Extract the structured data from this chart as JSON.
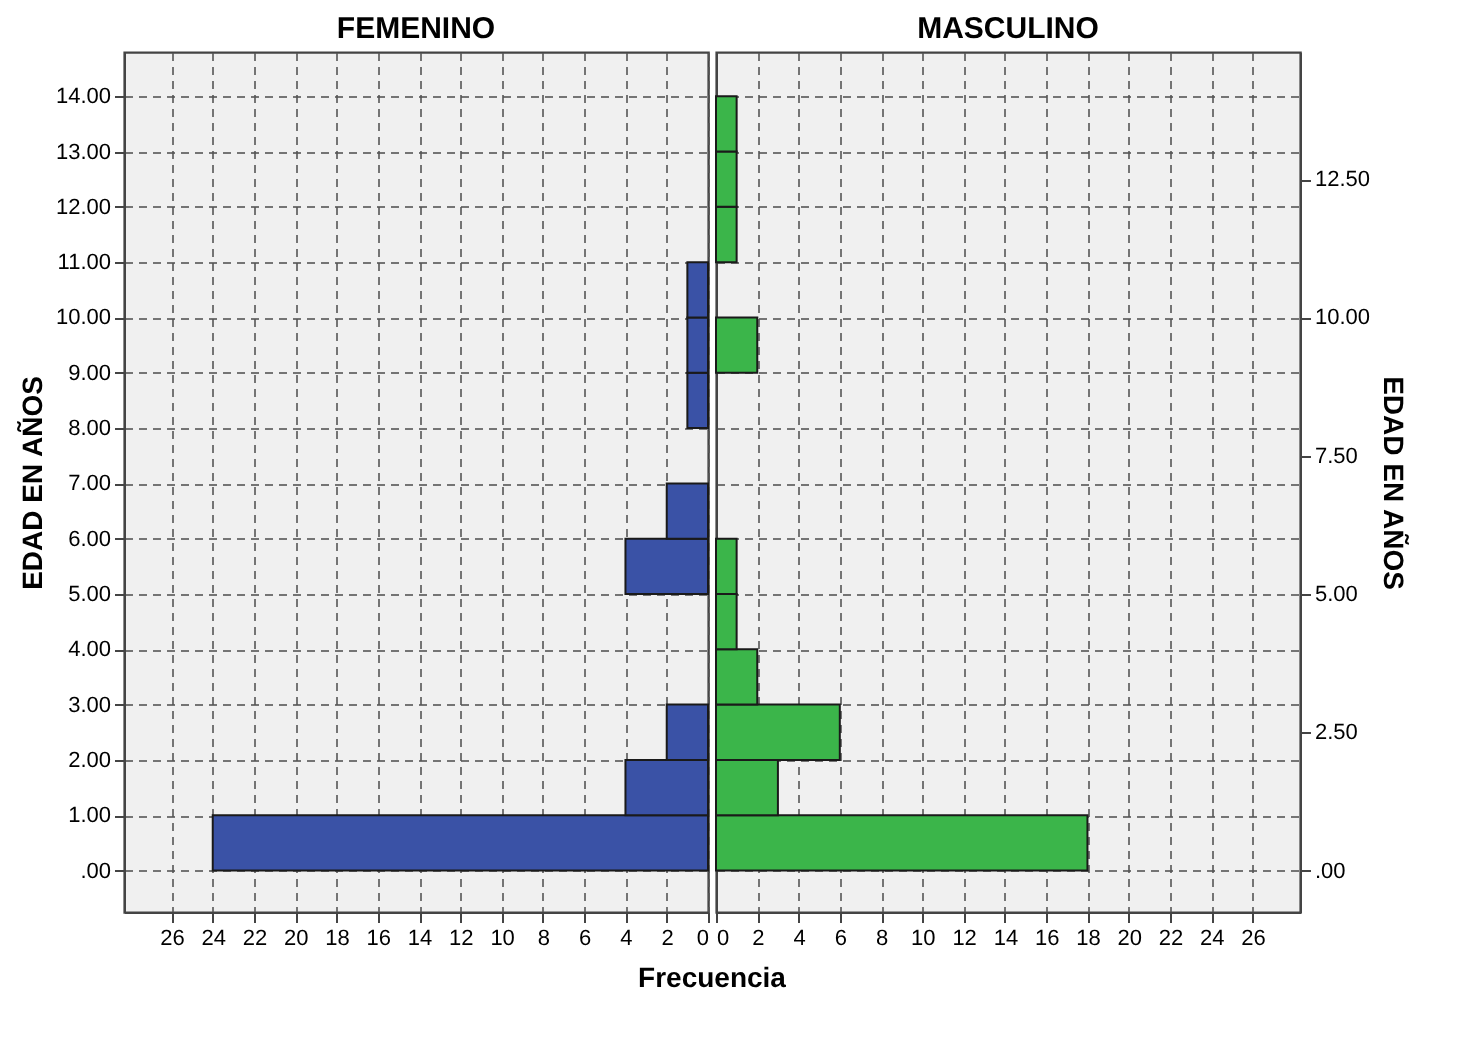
{
  "chart_data": [
    {
      "type": "histogram",
      "orientation": "horizontal",
      "title": "FEMENINO",
      "ylabel": "EDAD EN AÑOS",
      "xlabel": "Frecuencia",
      "color": "#3a52a6",
      "bins": [
        0,
        1,
        2,
        3,
        4,
        5,
        6,
        7,
        8,
        9,
        10,
        11,
        12,
        13,
        14
      ],
      "values": [
        24,
        4,
        2,
        0,
        0,
        4,
        2,
        0,
        1,
        1,
        1,
        0,
        0,
        0
      ],
      "xlim": [
        28.3,
        0
      ],
      "xticks": [
        26,
        24,
        22,
        20,
        18,
        16,
        14,
        12,
        10,
        8,
        6,
        4,
        2,
        0
      ],
      "ylim": [
        -0.75,
        14.8
      ],
      "yticks": [
        {
          "value": 0,
          "label": ".00"
        },
        {
          "value": 1,
          "label": "1.00"
        },
        {
          "value": 2,
          "label": "2.00"
        },
        {
          "value": 3,
          "label": "3.00"
        },
        {
          "value": 4,
          "label": "4.00"
        },
        {
          "value": 5,
          "label": "5.00"
        },
        {
          "value": 6,
          "label": "6.00"
        },
        {
          "value": 7,
          "label": "7.00"
        },
        {
          "value": 8,
          "label": "8.00"
        },
        {
          "value": 9,
          "label": "9.00"
        },
        {
          "value": 10,
          "label": "10.00"
        },
        {
          "value": 11,
          "label": "11.00"
        },
        {
          "value": 12,
          "label": "12.00"
        },
        {
          "value": 13,
          "label": "13.00"
        },
        {
          "value": 14,
          "label": "14.00"
        }
      ],
      "grid": true
    },
    {
      "type": "histogram",
      "orientation": "horizontal",
      "title": "MASCULINO",
      "y2label": "EDAD EN AÑOS",
      "color": "#3bb54a",
      "bins": [
        0,
        1,
        2,
        3,
        4,
        5,
        6,
        7,
        8,
        9,
        10,
        11,
        12,
        13,
        14
      ],
      "values": [
        18,
        3,
        6,
        2,
        1,
        1,
        0,
        0,
        0,
        2,
        0,
        1,
        1,
        1
      ],
      "xlim": [
        0,
        28.3
      ],
      "xticks": [
        0,
        2,
        4,
        6,
        8,
        10,
        12,
        14,
        16,
        18,
        20,
        22,
        24,
        26
      ],
      "ylim": [
        -0.75,
        14.8
      ],
      "yticks": [
        0,
        1,
        2,
        3,
        4,
        5,
        6,
        7,
        8,
        9,
        10,
        11,
        12,
        13,
        14
      ],
      "y2lim": [
        -0.75,
        14.8
      ],
      "y2ticks": [
        {
          "value": 0,
          "label": ".00"
        },
        {
          "value": 2.5,
          "label": "2.50"
        },
        {
          "value": 5,
          "label": "5.00"
        },
        {
          "value": 7.5,
          "label": "7.50"
        },
        {
          "value": 10,
          "label": "10.00"
        },
        {
          "value": 12.5,
          "label": "12.50"
        }
      ],
      "tick_labels": "x",
      "grid": true
    }
  ]
}
